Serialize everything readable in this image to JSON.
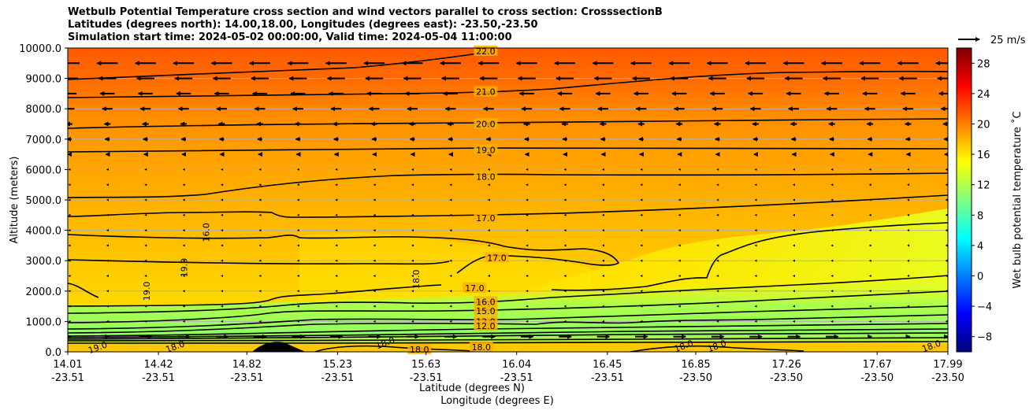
{
  "title_lines": [
    "Wetbulb Potential Temperature cross section and wind vectors parallel to cross section: CrosssectionB",
    "Latitudes (degrees north): 14.00,18.00, Longitudes (degrees east): -23.50,-23.50",
    "Simulation start time: 2024-05-02 00:00:00, Valid time: 2024-05-04 11:00:00"
  ],
  "chart_data": {
    "type": "heatmap",
    "subtype": "contourf cross section with contour lines and wind quiver",
    "ylabel": "Altitude (meters)",
    "xlabel_line1": "Latitude (degrees N)",
    "xlabel_line2": "Longitude (degrees E)",
    "ylim": [
      0,
      10000
    ],
    "yticks": [
      "0.0",
      "1000.0",
      "2000.0",
      "3000.0",
      "4000.0",
      "5000.0",
      "6000.0",
      "7000.0",
      "8000.0",
      "9000.0",
      "10000.0"
    ],
    "ytick_values": [
      0,
      1000,
      2000,
      3000,
      4000,
      5000,
      6000,
      7000,
      8000,
      9000,
      10000
    ],
    "xlim": [
      14.01,
      17.99
    ],
    "xticks_lat": [
      "14.01",
      "14.42",
      "14.82",
      "15.23",
      "15.63",
      "16.04",
      "16.45",
      "16.85",
      "17.26",
      "17.67",
      "17.99"
    ],
    "xticks_lon": [
      "-23.51",
      "-23.51",
      "-23.51",
      "-23.51",
      "-23.51",
      "-23.51",
      "-23.51",
      "-23.50",
      "-23.50",
      "-23.50",
      "-23.50"
    ],
    "xtick_values": [
      14.01,
      14.42,
      14.82,
      15.23,
      15.63,
      16.04,
      16.45,
      16.85,
      17.26,
      17.67,
      17.99
    ],
    "grid": "horizontal",
    "colorbar": {
      "label": "Wet bulb potential temperature ˚C",
      "range": [
        -10,
        30
      ],
      "ticks": [
        "−8",
        "−4",
        "0",
        "4",
        "8",
        "12",
        "16",
        "20",
        "24",
        "28"
      ],
      "tick_values": [
        -8,
        -4,
        0,
        4,
        8,
        12,
        16,
        20,
        24,
        28
      ],
      "colormap": [
        "#00007f",
        "#0000ff",
        "#007fff",
        "#00ffff",
        "#7fff7f",
        "#ffff00",
        "#ff7f00",
        "#ff0000",
        "#7f0000"
      ]
    },
    "quiver_key": "25 m/s",
    "contour_levels": [
      {
        "label": "22.0",
        "level": 22,
        "x": 15.9,
        "alt": 9900
      },
      {
        "label": "21.0",
        "level": 21,
        "x": 15.9,
        "alt": 8560
      },
      {
        "label": "20.0",
        "level": 20,
        "x": 15.9,
        "alt": 7500
      },
      {
        "label": "19.0",
        "level": 19,
        "x": 15.9,
        "alt": 6650
      },
      {
        "label": "18.0",
        "level": 18,
        "x": 15.9,
        "alt": 5760
      },
      {
        "label": "17.0",
        "level": 17,
        "x": 15.9,
        "alt": 4400
      },
      {
        "label": "17.0",
        "level": 17,
        "x": 15.95,
        "alt": 3100
      },
      {
        "label": "17.0",
        "level": 17,
        "x": 15.85,
        "alt": 2100
      },
      {
        "label": "16.0",
        "level": 16,
        "x": 15.9,
        "alt": 1650
      },
      {
        "label": "15.0",
        "level": 15,
        "x": 15.9,
        "alt": 1350
      },
      {
        "label": "13.0",
        "level": 13,
        "x": 15.9,
        "alt": 1000
      },
      {
        "label": "12.0",
        "level": 12,
        "x": 15.9,
        "alt": 850
      },
      {
        "label": "18.0",
        "level": 18,
        "x": 15.6,
        "alt": 80
      },
      {
        "label": "18.0",
        "level": 18,
        "x": 15.88,
        "alt": 150
      }
    ],
    "side_contour_labels": [
      {
        "label": "16.0",
        "x": 14.65,
        "alt": 3930
      },
      {
        "label": "19.0",
        "x": 14.55,
        "alt": 2770
      },
      {
        "label": "19.0",
        "x": 14.38,
        "alt": 2000
      },
      {
        "label": "18.0",
        "x": 15.6,
        "alt": 2390
      },
      {
        "label": "18.0",
        "x": 15.45,
        "alt": 200
      },
      {
        "label": "18.0",
        "x": 16.8,
        "alt": 100
      },
      {
        "label": "18.0",
        "x": 16.95,
        "alt": 100
      },
      {
        "label": "18.0",
        "x": 17.92,
        "alt": 100
      },
      {
        "label": "19.0",
        "x": 14.15,
        "alt": 50
      },
      {
        "label": "18.0",
        "x": 14.5,
        "alt": 80
      }
    ],
    "wind_rows": [
      {
        "alt": 9500,
        "u": -1.0
      },
      {
        "alt": 9000,
        "u": -0.85
      },
      {
        "alt": 8500,
        "u": -0.7
      },
      {
        "alt": 8000,
        "u": -0.5
      },
      {
        "alt": 7500,
        "u": -0.3
      },
      {
        "alt": 7000,
        "u": -0.22
      },
      {
        "alt": 6500,
        "u": -0.15
      },
      {
        "alt": 6000,
        "u": -0.1
      },
      {
        "alt": 5500,
        "u": -0.08
      },
      {
        "alt": 5000,
        "u": -0.07
      },
      {
        "alt": 4500,
        "u": -0.05
      },
      {
        "alt": 4000,
        "u": -0.04
      },
      {
        "alt": 3500,
        "u": -0.03
      },
      {
        "alt": 3000,
        "u": -0.03
      },
      {
        "alt": 2500,
        "u": -0.03
      },
      {
        "alt": 2000,
        "u": -0.03
      },
      {
        "alt": 1500,
        "u": -0.03
      },
      {
        "alt": 1000,
        "u": -0.04
      },
      {
        "alt": 500,
        "u": 0.6
      }
    ]
  }
}
